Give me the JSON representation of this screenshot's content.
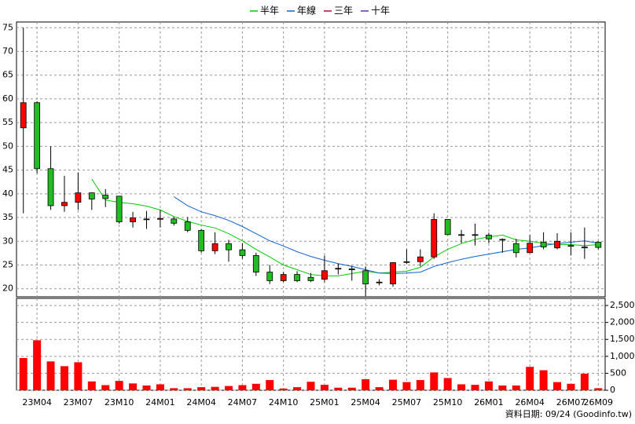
{
  "chart_data": {
    "type": "candlestick",
    "categories": [
      null,
      "23M04",
      null,
      null,
      "23M07",
      null,
      null,
      "23M10",
      null,
      null,
      "24M01",
      null,
      null,
      "24M04",
      null,
      null,
      "24M07",
      null,
      null,
      "24M10",
      null,
      null,
      "25M01",
      null,
      null,
      "25M04",
      null,
      null,
      "25M07",
      null,
      null,
      "25M10",
      null,
      null,
      "26M01",
      null,
      null,
      "26M04",
      null,
      null,
      "26M07",
      null,
      "26M09"
    ],
    "open": [
      53.9,
      59.2,
      45.3,
      37.5,
      38.2,
      40.2,
      39.7,
      39.5,
      34.1,
      34.6,
      34.7,
      34.7,
      34.1,
      32.3,
      28.0,
      29.5,
      28.2,
      27.0,
      23.5,
      21.7,
      23.0,
      22.4,
      22.0,
      24.2,
      24.2,
      23.8,
      21.3,
      21.0,
      25.6,
      25.7,
      26.7,
      34.6,
      31.3,
      31.4,
      31.3,
      30.4,
      29.5,
      27.6,
      29.8,
      28.6,
      29.1,
      28.8,
      29.8
    ],
    "high": [
      75.0,
      59.5,
      50.0,
      43.8,
      44.5,
      40.3,
      41.0,
      39.5,
      36.2,
      36.4,
      36.6,
      35.1,
      35.1,
      32.6,
      31.9,
      30.3,
      29.6,
      27.6,
      25.0,
      23.5,
      23.7,
      23.3,
      27.0,
      25.3,
      24.8,
      24.7,
      22.0,
      25.6,
      28.3,
      28.3,
      35.9,
      34.6,
      32.4,
      33.7,
      31.8,
      30.6,
      30.5,
      31.3,
      31.9,
      31.7,
      31.9,
      32.9,
      30.0
    ],
    "low": [
      35.9,
      44.3,
      36.6,
      36.2,
      36.6,
      36.6,
      37.2,
      33.7,
      32.9,
      32.6,
      32.9,
      33.3,
      31.9,
      27.6,
      27.3,
      25.7,
      26.3,
      22.7,
      21.0,
      21.4,
      21.4,
      21.4,
      21.4,
      23.0,
      21.7,
      18.4,
      20.7,
      20.4,
      25.3,
      24.7,
      26.3,
      31.3,
      29.6,
      29.1,
      29.6,
      27.6,
      26.6,
      27.5,
      28.3,
      28.3,
      27.0,
      26.3,
      28.3
    ],
    "close": [
      59.2,
      45.3,
      37.5,
      38.2,
      40.2,
      38.9,
      39.0,
      34.1,
      34.9,
      34.7,
      34.8,
      33.8,
      32.3,
      28.0,
      29.5,
      28.2,
      27.0,
      23.5,
      21.7,
      23.0,
      21.7,
      21.7,
      23.8,
      24.3,
      24.0,
      21.0,
      21.4,
      25.5,
      25.7,
      26.7,
      34.6,
      31.4,
      31.4,
      31.3,
      30.5,
      30.3,
      27.6,
      29.6,
      28.8,
      30.0,
      29.0,
      28.6,
      28.7
    ],
    "up_color": "#ff0000",
    "down_color": "#22bb22",
    "volume": {
      "axis": "y2",
      "color": "#ff0000",
      "values": [
        950,
        1475,
        850,
        710,
        825,
        260,
        150,
        275,
        200,
        140,
        175,
        60,
        60,
        90,
        100,
        125,
        150,
        190,
        300,
        50,
        90,
        250,
        160,
        75,
        75,
        325,
        90,
        310,
        240,
        300,
        525,
        360,
        175,
        160,
        260,
        140,
        140,
        690,
        590,
        240,
        190,
        490,
        60
      ]
    },
    "series": [
      {
        "name": "半年",
        "color": "#00cc00",
        "values": [
          null,
          null,
          null,
          null,
          null,
          43.1,
          38.7,
          38.2,
          37.9,
          37.4,
          36.6,
          35.2,
          34.2,
          33.4,
          32.8,
          31.6,
          30.1,
          28.3,
          26.7,
          25.0,
          24.0,
          23.0,
          22.7,
          22.7,
          23.2,
          23.7,
          23.3,
          23.5,
          23.7,
          24.5,
          26.7,
          28.3,
          29.5,
          30.4,
          30.9,
          31.3,
          30.3,
          30.0,
          29.6,
          29.3,
          29.3,
          29.1,
          29.3
        ]
      },
      {
        "name": "年線",
        "color": "#1060d0",
        "values": [
          null,
          null,
          null,
          null,
          null,
          null,
          null,
          null,
          null,
          null,
          null,
          39.4,
          37.5,
          36.2,
          35.4,
          34.4,
          33.1,
          31.6,
          30.1,
          29.0,
          27.8,
          26.8,
          26.0,
          25.3,
          24.7,
          24.0,
          23.3,
          23.2,
          23.3,
          23.5,
          24.7,
          25.5,
          26.2,
          26.8,
          27.3,
          27.8,
          28.3,
          28.6,
          29.1,
          29.5,
          29.8,
          30.1,
          29.6
        ]
      },
      {
        "name": "三年",
        "color": "#cc0033",
        "values": [
          null,
          null,
          null,
          null,
          null,
          null,
          null,
          null,
          null,
          null,
          null,
          null,
          null,
          null,
          null,
          null,
          null,
          null,
          null,
          null,
          null,
          null,
          null,
          null,
          null,
          null,
          null,
          null,
          null,
          null,
          null,
          null,
          null,
          null,
          null,
          null,
          null,
          null,
          null,
          null,
          null,
          null,
          null
        ]
      },
      {
        "name": "十年",
        "color": "#6633aa",
        "values": [
          null,
          null,
          null,
          null,
          null,
          null,
          null,
          null,
          null,
          null,
          null,
          null,
          null,
          null,
          null,
          null,
          null,
          null,
          null,
          null,
          null,
          null,
          null,
          null,
          null,
          null,
          null,
          null,
          null,
          null,
          null,
          null,
          null,
          null,
          null,
          null,
          null,
          null,
          null,
          null,
          null,
          null,
          null
        ]
      }
    ],
    "ylim": [
      18.3,
      76.2
    ],
    "yticks": [
      20,
      25,
      30,
      35,
      40,
      45,
      50,
      55,
      60,
      65,
      70,
      75
    ],
    "y2lim": [
      0,
      2710
    ],
    "y2ticks": [
      0,
      500,
      {
        "value": 1000,
        "label": "1,000"
      },
      {
        "value": 1500,
        "label": "1,500"
      },
      {
        "value": 2000,
        "label": "2,000"
      },
      {
        "value": 2500,
        "label": "2,500"
      }
    ],
    "grid": true,
    "footer": "資料日期: 09/24 (Goodinfo.tw)"
  }
}
